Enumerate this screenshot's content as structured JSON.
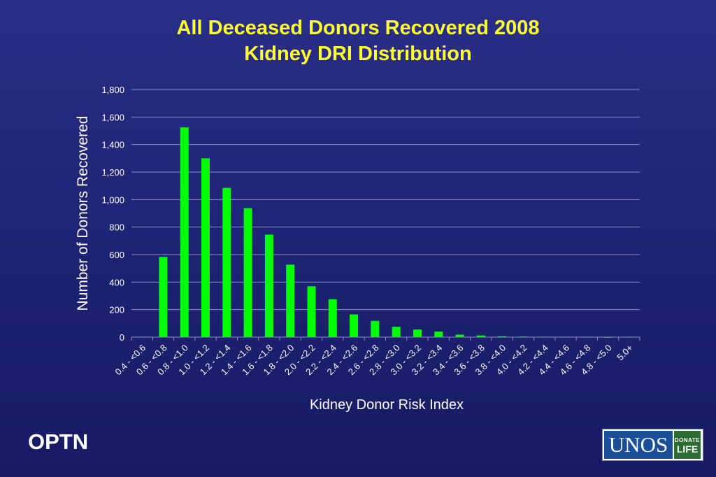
{
  "title_line1": "All Deceased Donors Recovered 2008",
  "title_line2": "Kidney DRI Distribution",
  "footer_left": "OPTN",
  "logo": {
    "main": "UNOS",
    "side_top": "DONATE",
    "side_bottom": "LIFE"
  },
  "colors": {
    "bar": "#00ff00",
    "title": "#ffff33",
    "text": "#ffffff",
    "grid": "#8a8fc0"
  },
  "chart_data": {
    "type": "bar",
    "title": "All Deceased Donors Recovered 2008 Kidney DRI Distribution",
    "xlabel": "Kidney Donor Risk Index",
    "ylabel": "Number of Donors Recovered",
    "ylim": [
      0,
      1800
    ],
    "yticks": [
      "0",
      "200",
      "400",
      "600",
      "800",
      "1,000",
      "1,200",
      "1,400",
      "1,600",
      "1,800"
    ],
    "ytick_values": [
      0,
      200,
      400,
      600,
      800,
      1000,
      1200,
      1400,
      1600,
      1800
    ],
    "grid": true,
    "legend": "none",
    "categories": [
      "0.4 - <0.6",
      "0.6 - <0.8",
      "0.8 - <1.0",
      "1.0 - <1.2",
      "1.2 - <1.4",
      "1.4 - <1.6",
      "1.6 - <1.8",
      "1.8 - <2.0",
      "2.0 - <2.2",
      "2.2 - <2.4",
      "2.4 - <2.6",
      "2.6 - <2.8",
      "2.8 - <3.0",
      "3.0 - <3.2",
      "3.2 - <3.4",
      "3.4 - <3.6",
      "3.6 - <3.8",
      "3.8 - <4.0",
      "4.0 - <4.2",
      "4.2 - <4.4",
      "4.4 - <4.6",
      "4.6 - <4.8",
      "4.8 - <5.0",
      "5.0+"
    ],
    "values": [
      3,
      583,
      1525,
      1300,
      1085,
      938,
      745,
      527,
      370,
      275,
      165,
      118,
      75,
      55,
      40,
      18,
      12,
      6,
      4,
      3,
      2,
      2,
      1,
      2
    ]
  }
}
